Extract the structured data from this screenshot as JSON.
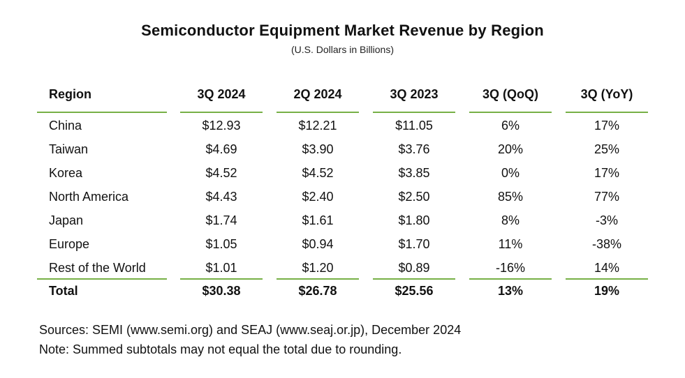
{
  "chart_data": {
    "type": "table",
    "title": "Semiconductor Equipment Market Revenue by Region",
    "subtitle": "(U.S. Dollars in Billions)",
    "columns": [
      "Region",
      "3Q 2024",
      "2Q 2024",
      "3Q 2023",
      "3Q (QoQ)",
      "3Q (YoY)"
    ],
    "rows": [
      [
        "China",
        "$12.93",
        "$12.21",
        "$11.05",
        "6%",
        "17%"
      ],
      [
        "Taiwan",
        "$4.69",
        "$3.90",
        "$3.76",
        "20%",
        "25%"
      ],
      [
        "Korea",
        "$4.52",
        "$4.52",
        "$3.85",
        "0%",
        "17%"
      ],
      [
        "North America",
        "$4.43",
        "$2.40",
        "$2.50",
        "85%",
        "77%"
      ],
      [
        "Japan",
        "$1.74",
        "$1.61",
        "$1.80",
        "8%",
        "-3%"
      ],
      [
        "Europe",
        "$1.05",
        "$0.94",
        "$1.70",
        "11%",
        "-38%"
      ],
      [
        "Rest of the World",
        "$1.01",
        "$1.20",
        "$0.89",
        "-16%",
        "14%"
      ]
    ],
    "total_row": [
      "Total",
      "$30.38",
      "$26.78",
      "$25.56",
      "13%",
      "19%"
    ]
  },
  "footer": {
    "sources": "Sources: SEMI (www.semi.org) and SEAJ (www.seaj.or.jp), December 2024",
    "note": "Note: Summed subtotals may not equal the total due to rounding."
  },
  "colors": {
    "rule": "#77b046",
    "text": "#111111"
  }
}
